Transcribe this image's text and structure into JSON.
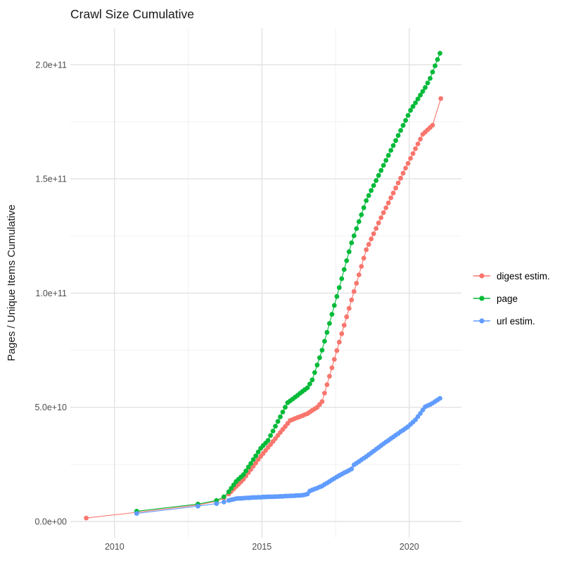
{
  "title": "Crawl Size Cumulative",
  "y_axis_title": "Pages / Unique Items Cumulative",
  "legend": {
    "items": [
      {
        "label": "digest estim.",
        "color": "#F8766D"
      },
      {
        "label": "page",
        "color": "#00BA38"
      },
      {
        "label": "url estim.",
        "color": "#619CFF"
      }
    ]
  },
  "colors": {
    "grid_major": "#E4E4E4",
    "grid_minor": "#F1F1F1",
    "tick_label": "#4D4D4D",
    "title_text": "#1A1A1A",
    "background": "#FFFFFF"
  },
  "chart_data": {
    "type": "scatter",
    "title": "Crawl Size Cumulative",
    "xlabel": "",
    "ylabel": "Pages / Unique Items Cumulative",
    "grid": true,
    "legend_position": "right",
    "y_unit": "1e10 (values below are in units of 1e10)",
    "xlim": [
      2008.5,
      2021.77
    ],
    "ylim": [
      -0.71,
      21.6
    ],
    "x_major_ticks": [
      {
        "value": 2010,
        "label": "2010"
      },
      {
        "value": 2015,
        "label": "2015"
      },
      {
        "value": 2020,
        "label": "2020"
      }
    ],
    "x_minor_ticks": [
      2012.5,
      2017.5
    ],
    "y_major_ticks": [
      {
        "value": 0,
        "label": "0.0e+00"
      },
      {
        "value": 5,
        "label": "5.0e+10"
      },
      {
        "value": 10,
        "label": "1.0e+11"
      },
      {
        "value": 15,
        "label": "1.5e+11"
      },
      {
        "value": 20,
        "label": "2.0e+11"
      }
    ],
    "y_minor_ticks": [
      2.5,
      7.5,
      12.5,
      17.5
    ],
    "series": [
      {
        "name": "digest estim.",
        "color": "#F8766D",
        "points": [
          [
            2009.04,
            0.15
          ],
          [
            2010.75,
            0.4
          ],
          [
            2012.83,
            0.72
          ],
          [
            2013.46,
            0.88
          ],
          [
            2013.71,
            1.02
          ],
          [
            2013.875,
            1.2
          ],
          [
            2013.958,
            1.31
          ],
          [
            2014.042,
            1.42
          ],
          [
            2014.125,
            1.53
          ],
          [
            2014.208,
            1.63
          ],
          [
            2014.292,
            1.74
          ],
          [
            2014.375,
            1.85
          ],
          [
            2014.458,
            1.99
          ],
          [
            2014.542,
            2.14
          ],
          [
            2014.625,
            2.28
          ],
          [
            2014.708,
            2.42
          ],
          [
            2014.792,
            2.56
          ],
          [
            2014.875,
            2.71
          ],
          [
            2014.958,
            2.85
          ],
          [
            2015.042,
            2.98
          ],
          [
            2015.125,
            3.11
          ],
          [
            2015.208,
            3.24
          ],
          [
            2015.292,
            3.37
          ],
          [
            2015.375,
            3.5
          ],
          [
            2015.458,
            3.63
          ],
          [
            2015.542,
            3.77
          ],
          [
            2015.625,
            3.9
          ],
          [
            2015.708,
            4.03
          ],
          [
            2015.792,
            4.16
          ],
          [
            2015.875,
            4.29
          ],
          [
            2015.958,
            4.42
          ],
          [
            2016.042,
            4.46
          ],
          [
            2016.125,
            4.51
          ],
          [
            2016.208,
            4.55
          ],
          [
            2016.292,
            4.59
          ],
          [
            2016.375,
            4.63
          ],
          [
            2016.458,
            4.68
          ],
          [
            2016.542,
            4.72
          ],
          [
            2016.625,
            4.79
          ],
          [
            2016.708,
            4.86
          ],
          [
            2016.792,
            4.93
          ],
          [
            2016.875,
            5.0
          ],
          [
            2016.958,
            5.12
          ],
          [
            2017.042,
            5.25
          ],
          [
            2017.125,
            5.62
          ],
          [
            2017.208,
            5.99
          ],
          [
            2017.292,
            6.36
          ],
          [
            2017.375,
            6.73
          ],
          [
            2017.458,
            7.1
          ],
          [
            2017.542,
            7.48
          ],
          [
            2017.625,
            7.85
          ],
          [
            2017.708,
            8.22
          ],
          [
            2017.792,
            8.59
          ],
          [
            2017.875,
            8.96
          ],
          [
            2017.958,
            9.33
          ],
          [
            2018.042,
            9.7
          ],
          [
            2018.125,
            10.07
          ],
          [
            2018.208,
            10.43
          ],
          [
            2018.292,
            10.8
          ],
          [
            2018.375,
            11.17
          ],
          [
            2018.458,
            11.53
          ],
          [
            2018.542,
            11.9
          ],
          [
            2018.625,
            12.13
          ],
          [
            2018.708,
            12.37
          ],
          [
            2018.792,
            12.6
          ],
          [
            2018.875,
            12.83
          ],
          [
            2018.958,
            13.07
          ],
          [
            2019.042,
            13.3
          ],
          [
            2019.125,
            13.52
          ],
          [
            2019.208,
            13.73
          ],
          [
            2019.292,
            13.95
          ],
          [
            2019.375,
            14.17
          ],
          [
            2019.458,
            14.38
          ],
          [
            2019.542,
            14.6
          ],
          [
            2019.625,
            14.82
          ],
          [
            2019.708,
            15.03
          ],
          [
            2019.792,
            15.25
          ],
          [
            2019.875,
            15.47
          ],
          [
            2019.958,
            15.68
          ],
          [
            2020.042,
            15.9
          ],
          [
            2020.125,
            16.11
          ],
          [
            2020.208,
            16.32
          ],
          [
            2020.292,
            16.53
          ],
          [
            2020.375,
            16.74
          ],
          [
            2020.458,
            16.95
          ],
          [
            2020.542,
            17.05
          ],
          [
            2020.625,
            17.15
          ],
          [
            2020.708,
            17.25
          ],
          [
            2020.792,
            17.35
          ],
          [
            2021.07,
            18.52
          ]
        ]
      },
      {
        "name": "page",
        "color": "#00BA38",
        "points": [
          [
            2010.75,
            0.45
          ],
          [
            2012.83,
            0.76
          ],
          [
            2013.46,
            0.92
          ],
          [
            2013.71,
            1.08
          ],
          [
            2013.875,
            1.3
          ],
          [
            2013.958,
            1.45
          ],
          [
            2014.042,
            1.6
          ],
          [
            2014.125,
            1.75
          ],
          [
            2014.208,
            1.85
          ],
          [
            2014.292,
            1.95
          ],
          [
            2014.375,
            2.05
          ],
          [
            2014.458,
            2.21
          ],
          [
            2014.542,
            2.38
          ],
          [
            2014.625,
            2.54
          ],
          [
            2014.708,
            2.71
          ],
          [
            2014.792,
            2.87
          ],
          [
            2014.875,
            3.04
          ],
          [
            2014.958,
            3.2
          ],
          [
            2015.042,
            3.32
          ],
          [
            2015.125,
            3.43
          ],
          [
            2015.208,
            3.55
          ],
          [
            2015.292,
            3.76
          ],
          [
            2015.375,
            3.96
          ],
          [
            2015.458,
            4.17
          ],
          [
            2015.542,
            4.38
          ],
          [
            2015.625,
            4.58
          ],
          [
            2015.708,
            4.79
          ],
          [
            2015.792,
            5.0
          ],
          [
            2015.875,
            5.2
          ],
          [
            2015.958,
            5.28
          ],
          [
            2016.042,
            5.36
          ],
          [
            2016.125,
            5.44
          ],
          [
            2016.208,
            5.52
          ],
          [
            2016.292,
            5.61
          ],
          [
            2016.375,
            5.69
          ],
          [
            2016.458,
            5.77
          ],
          [
            2016.542,
            5.85
          ],
          [
            2016.625,
            6.02
          ],
          [
            2016.708,
            6.2
          ],
          [
            2016.792,
            6.52
          ],
          [
            2016.875,
            6.85
          ],
          [
            2016.958,
            7.17
          ],
          [
            2017.042,
            7.5
          ],
          [
            2017.125,
            7.89
          ],
          [
            2017.208,
            8.28
          ],
          [
            2017.292,
            8.67
          ],
          [
            2017.375,
            9.07
          ],
          [
            2017.458,
            9.46
          ],
          [
            2017.542,
            9.85
          ],
          [
            2017.625,
            10.24
          ],
          [
            2017.708,
            10.63
          ],
          [
            2017.792,
            11.03
          ],
          [
            2017.875,
            11.42
          ],
          [
            2017.958,
            11.81
          ],
          [
            2018.042,
            12.2
          ],
          [
            2018.125,
            12.51
          ],
          [
            2018.208,
            12.82
          ],
          [
            2018.292,
            13.13
          ],
          [
            2018.375,
            13.43
          ],
          [
            2018.458,
            13.74
          ],
          [
            2018.542,
            14.05
          ],
          [
            2018.625,
            14.27
          ],
          [
            2018.708,
            14.49
          ],
          [
            2018.792,
            14.71
          ],
          [
            2018.875,
            14.93
          ],
          [
            2018.958,
            15.15
          ],
          [
            2019.042,
            15.37
          ],
          [
            2019.125,
            15.59
          ],
          [
            2019.208,
            15.81
          ],
          [
            2019.292,
            16.03
          ],
          [
            2019.375,
            16.25
          ],
          [
            2019.458,
            16.46
          ],
          [
            2019.542,
            16.68
          ],
          [
            2019.625,
            16.9
          ],
          [
            2019.708,
            17.12
          ],
          [
            2019.792,
            17.34
          ],
          [
            2019.875,
            17.56
          ],
          [
            2019.958,
            17.78
          ],
          [
            2020.042,
            18.0
          ],
          [
            2020.125,
            18.17
          ],
          [
            2020.208,
            18.33
          ],
          [
            2020.292,
            18.5
          ],
          [
            2020.375,
            18.67
          ],
          [
            2020.458,
            18.83
          ],
          [
            2020.542,
            19.0
          ],
          [
            2020.625,
            19.2
          ],
          [
            2020.708,
            19.4
          ],
          [
            2020.792,
            19.68
          ],
          [
            2020.875,
            19.95
          ],
          [
            2020.958,
            20.23
          ],
          [
            2021.042,
            20.5
          ]
        ]
      },
      {
        "name": "url estim.",
        "color": "#619CFF",
        "points": [
          [
            2010.75,
            0.35
          ],
          [
            2012.83,
            0.67
          ],
          [
            2013.46,
            0.78
          ],
          [
            2013.71,
            0.85
          ],
          [
            2013.875,
            0.92
          ],
          [
            2013.958,
            0.95
          ],
          [
            2014.042,
            0.97
          ],
          [
            2014.125,
            1.0
          ],
          [
            2014.208,
            1.01
          ],
          [
            2014.292,
            1.01
          ],
          [
            2014.375,
            1.02
          ],
          [
            2014.458,
            1.03
          ],
          [
            2014.542,
            1.03
          ],
          [
            2014.625,
            1.04
          ],
          [
            2014.708,
            1.05
          ],
          [
            2014.792,
            1.05
          ],
          [
            2014.875,
            1.06
          ],
          [
            2014.958,
            1.06
          ],
          [
            2015.042,
            1.07
          ],
          [
            2015.125,
            1.07
          ],
          [
            2015.208,
            1.08
          ],
          [
            2015.292,
            1.08
          ],
          [
            2015.375,
            1.08
          ],
          [
            2015.458,
            1.09
          ],
          [
            2015.542,
            1.09
          ],
          [
            2015.625,
            1.1
          ],
          [
            2015.708,
            1.1
          ],
          [
            2015.792,
            1.11
          ],
          [
            2015.875,
            1.11
          ],
          [
            2015.958,
            1.12
          ],
          [
            2016.042,
            1.12
          ],
          [
            2016.125,
            1.13
          ],
          [
            2016.208,
            1.14
          ],
          [
            2016.292,
            1.14
          ],
          [
            2016.375,
            1.15
          ],
          [
            2016.458,
            1.17
          ],
          [
            2016.542,
            1.2
          ],
          [
            2016.625,
            1.33
          ],
          [
            2016.708,
            1.38
          ],
          [
            2016.792,
            1.42
          ],
          [
            2016.875,
            1.46
          ],
          [
            2016.958,
            1.51
          ],
          [
            2017.042,
            1.55
          ],
          [
            2017.125,
            1.62
          ],
          [
            2017.208,
            1.68
          ],
          [
            2017.292,
            1.75
          ],
          [
            2017.375,
            1.82
          ],
          [
            2017.458,
            1.88
          ],
          [
            2017.542,
            1.95
          ],
          [
            2017.625,
            2.01
          ],
          [
            2017.708,
            2.07
          ],
          [
            2017.792,
            2.13
          ],
          [
            2017.875,
            2.18
          ],
          [
            2017.958,
            2.24
          ],
          [
            2018.042,
            2.3
          ],
          [
            2018.125,
            2.48
          ],
          [
            2018.208,
            2.55
          ],
          [
            2018.292,
            2.62
          ],
          [
            2018.375,
            2.7
          ],
          [
            2018.458,
            2.77
          ],
          [
            2018.542,
            2.84
          ],
          [
            2018.625,
            2.92
          ],
          [
            2018.708,
            3.0
          ],
          [
            2018.792,
            3.08
          ],
          [
            2018.875,
            3.16
          ],
          [
            2018.958,
            3.24
          ],
          [
            2019.042,
            3.32
          ],
          [
            2019.125,
            3.4
          ],
          [
            2019.208,
            3.48
          ],
          [
            2019.292,
            3.55
          ],
          [
            2019.375,
            3.63
          ],
          [
            2019.458,
            3.7
          ],
          [
            2019.542,
            3.78
          ],
          [
            2019.625,
            3.85
          ],
          [
            2019.708,
            3.93
          ],
          [
            2019.792,
            4.0
          ],
          [
            2019.875,
            4.08
          ],
          [
            2019.958,
            4.15
          ],
          [
            2020.042,
            4.25
          ],
          [
            2020.125,
            4.35
          ],
          [
            2020.208,
            4.45
          ],
          [
            2020.292,
            4.59
          ],
          [
            2020.375,
            4.73
          ],
          [
            2020.458,
            4.88
          ],
          [
            2020.542,
            5.02
          ],
          [
            2020.625,
            5.07
          ],
          [
            2020.708,
            5.12
          ],
          [
            2020.792,
            5.18
          ],
          [
            2020.875,
            5.25
          ],
          [
            2020.958,
            5.32
          ],
          [
            2021.042,
            5.39
          ]
        ]
      }
    ]
  }
}
